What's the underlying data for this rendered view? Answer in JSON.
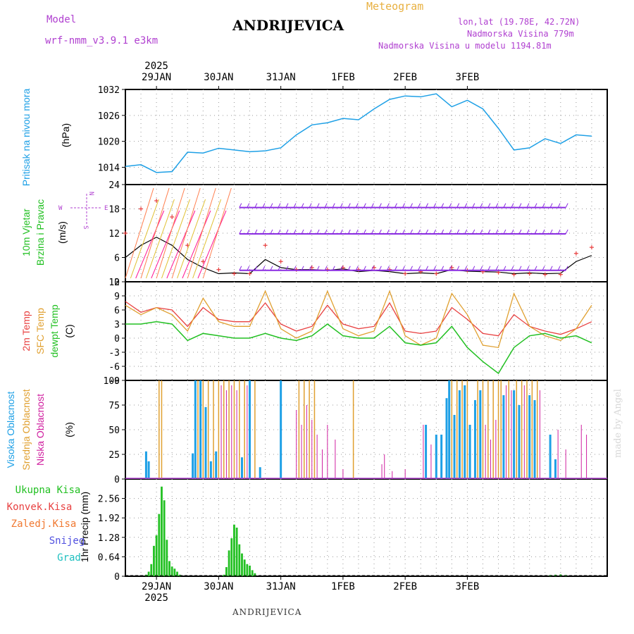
{
  "header": {
    "model_label": "Model",
    "model_name": "wrf-nmm_v3.9.1 e3km",
    "meteogram_label": "Meteogram",
    "station": "ANDRIJEVICA",
    "lonlat": "lon,lat (19.78E, 42.72N)",
    "altitude": "Nadmorska Visina 779m",
    "model_altitude": "Nadmorska Visina u modelu 1194.81m"
  },
  "footer": {
    "station": "ANDRIJEVICA",
    "credit": "made by Angel"
  },
  "dates": {
    "year": "2025",
    "labels": [
      "29JAN",
      "30JAN",
      "31JAN",
      "1FEB",
      "2FEB",
      "3FEB"
    ]
  },
  "colors": {
    "pressure": "#1ea0e6",
    "wind_label": "#22c022",
    "temp2m": "#e84040",
    "sfc": "#e0a030",
    "dewpt": "#22c022",
    "purple": "#b040d0",
    "high": "#1ea0e6",
    "mid": "#e0a030",
    "low": "#d020a0",
    "precip": "#22c022"
  },
  "panels": {
    "pressure": {
      "label": "Pritisak na nivou mora",
      "unit": "(hPa)"
    },
    "wind": {
      "label1": "10m Vjetar",
      "label2": "Brzina i Pravac",
      "unit": "(m/s)",
      "compass": {
        "n": "N",
        "w": "W",
        "e": "E",
        "s": "S"
      }
    },
    "temp": {
      "label1": "2m Temp",
      "label2": "SFC Temp",
      "label3": "dewpt Temp",
      "unit": "(C)"
    },
    "cloud": {
      "label1": "Visoka Oblacnost",
      "label2": "Srednja Oblacnost",
      "label3": "Niska Oblacnost",
      "unit": "(%)"
    },
    "precip": {
      "label": "1hr Precip (mm)",
      "legend": [
        "Ukupna Kisa",
        "Konvek.Kisa",
        "Zaledj.Kisa",
        "Snijeg",
        "Grad"
      ]
    }
  },
  "chart_data": [
    {
      "type": "line",
      "title": "Pritisak na nivou mora",
      "ylabel": "(hPa)",
      "ylim": [
        1010,
        1032
      ],
      "yticks": [
        "1032",
        "1026",
        "1020",
        "1014"
      ],
      "x_hours": [
        0,
        6,
        12,
        18,
        24,
        30,
        36,
        42,
        48,
        54,
        60,
        66,
        72,
        78,
        84,
        90,
        96,
        102,
        108,
        114,
        120,
        126,
        132,
        138,
        144,
        150,
        156,
        162,
        168,
        174,
        180
      ],
      "series": [
        {
          "name": "pressure",
          "values": [
            1014.2,
            1014.6,
            1012.8,
            1013.0,
            1017.5,
            1017.3,
            1018.4,
            1018.0,
            1017.6,
            1017.8,
            1018.5,
            1021.5,
            1023.8,
            1024.3,
            1025.3,
            1025.0,
            1027.5,
            1029.7,
            1030.5,
            1030.3,
            1031.0,
            1028.0,
            1029.5,
            1027.5,
            1023.0,
            1018.0,
            1018.5,
            1020.6,
            1019.5,
            1021.5,
            1021.2
          ]
        }
      ]
    },
    {
      "type": "line",
      "title": "10m Vjetar Brzina i Pravac",
      "ylabel": "(m/s)",
      "ylim": [
        0,
        24
      ],
      "yticks": [
        "24",
        "18",
        "12",
        "6",
        "0"
      ],
      "x_hours": [
        0,
        6,
        12,
        18,
        24,
        30,
        36,
        42,
        48,
        54,
        60,
        66,
        72,
        78,
        84,
        90,
        96,
        102,
        108,
        114,
        120,
        126,
        132,
        138,
        144,
        150,
        156,
        162,
        168,
        174,
        180
      ],
      "series": [
        {
          "name": "wind speed",
          "values": [
            6.0,
            9.0,
            11.0,
            9.0,
            5.5,
            3.5,
            2.0,
            2.2,
            2.0,
            5.5,
            3.5,
            3.0,
            3.0,
            2.8,
            3.2,
            2.5,
            2.8,
            2.5,
            2.0,
            2.2,
            2.0,
            3.0,
            2.6,
            2.5,
            2.4,
            2.0,
            2.2,
            2.0,
            2.1,
            5.0,
            6.5
          ]
        },
        {
          "name": "wind gust",
          "values": [
            12.0,
            18.0,
            20.0,
            16.0,
            9.0,
            5.0,
            3.0,
            2.0,
            2.0,
            9.0,
            5.0,
            3.0,
            3.5,
            3.0,
            3.5,
            3.0,
            3.5,
            3.0,
            2.0,
            2.5,
            2.0,
            3.5,
            2.8,
            2.5,
            2.3,
            1.8,
            2.0,
            1.8,
            1.8,
            7.0,
            8.5
          ]
        }
      ]
    },
    {
      "type": "line",
      "title": "2m Temp / SFC Temp / dewpt Temp",
      "ylabel": "(C)",
      "ylim": [
        -9,
        12
      ],
      "yticks": [
        "12",
        "9",
        "6",
        "3",
        "0",
        "-3",
        "-6",
        "-9"
      ],
      "x_hours": [
        0,
        6,
        12,
        18,
        24,
        30,
        36,
        42,
        48,
        54,
        60,
        66,
        72,
        78,
        84,
        90,
        96,
        102,
        108,
        114,
        120,
        126,
        132,
        138,
        144,
        150,
        156,
        162,
        168,
        174,
        180
      ],
      "series": [
        {
          "name": "2m Temp",
          "values": [
            7.8,
            5.5,
            6.5,
            6.0,
            2.5,
            6.5,
            4.0,
            3.5,
            3.5,
            7.5,
            3.0,
            1.5,
            2.5,
            7.0,
            3.0,
            2.0,
            2.5,
            7.5,
            1.5,
            1.0,
            1.5,
            6.5,
            4.0,
            1.0,
            0.5,
            5.0,
            2.5,
            1.5,
            0.8,
            2.0,
            3.5
          ]
        },
        {
          "name": "SFC Temp",
          "values": [
            7.0,
            5.0,
            6.5,
            5.0,
            1.5,
            8.5,
            3.5,
            2.5,
            2.5,
            10.0,
            2.0,
            0.0,
            1.5,
            10.0,
            2.0,
            0.5,
            1.5,
            10.0,
            0.5,
            -1.5,
            0.0,
            9.5,
            5.0,
            -1.5,
            -2.0,
            9.5,
            2.5,
            0.5,
            -0.5,
            2.0,
            7.0
          ]
        },
        {
          "name": "dewpt Temp",
          "values": [
            3.0,
            3.0,
            3.5,
            3.0,
            -0.5,
            1.0,
            0.5,
            0.0,
            0.0,
            1.0,
            0.0,
            -0.5,
            0.5,
            3.0,
            0.5,
            0.0,
            0.0,
            2.5,
            -1.0,
            -1.5,
            -1.0,
            2.5,
            -2.0,
            -5.0,
            -7.5,
            -2.0,
            0.5,
            1.0,
            0.0,
            0.5,
            -1.0
          ]
        }
      ]
    },
    {
      "type": "bar",
      "title": "Oblacnost",
      "ylabel": "(%)",
      "ylim": [
        0,
        100
      ],
      "yticks": [
        "100",
        "75",
        "50",
        "25",
        "0"
      ],
      "series": [
        {
          "name": "Visoka Oblacnost",
          "bars": [
            {
              "h": 8,
              "v": 28
            },
            {
              "h": 9,
              "v": 18
            },
            {
              "h": 26,
              "v": 26
            },
            {
              "h": 27,
              "v": 100
            },
            {
              "h": 29,
              "v": 100
            },
            {
              "h": 31,
              "v": 73
            },
            {
              "h": 33,
              "v": 18
            },
            {
              "h": 35,
              "v": 28
            },
            {
              "h": 45,
              "v": 22
            },
            {
              "h": 48,
              "v": 100
            },
            {
              "h": 52,
              "v": 12
            },
            {
              "h": 60,
              "v": 100
            },
            {
              "h": 116,
              "v": 55
            },
            {
              "h": 120,
              "v": 45
            },
            {
              "h": 122,
              "v": 45
            },
            {
              "h": 124,
              "v": 82
            },
            {
              "h": 125,
              "v": 100
            },
            {
              "h": 127,
              "v": 65
            },
            {
              "h": 129,
              "v": 90
            },
            {
              "h": 131,
              "v": 95
            },
            {
              "h": 133,
              "v": 55
            },
            {
              "h": 135,
              "v": 80
            },
            {
              "h": 137,
              "v": 90
            },
            {
              "h": 146,
              "v": 85
            },
            {
              "h": 150,
              "v": 90
            },
            {
              "h": 152,
              "v": 75
            },
            {
              "h": 156,
              "v": 85
            },
            {
              "h": 158,
              "v": 80
            },
            {
              "h": 164,
              "v": 45
            },
            {
              "h": 166,
              "v": 20
            }
          ]
        },
        {
          "name": "Srednja Oblacnost",
          "bars": [
            {
              "h": 13,
              "v": 100
            },
            {
              "h": 14,
              "v": 100
            },
            {
              "h": 28,
              "v": 100
            },
            {
              "h": 30,
              "v": 100
            },
            {
              "h": 32,
              "v": 100
            },
            {
              "h": 34,
              "v": 100
            },
            {
              "h": 36,
              "v": 100
            },
            {
              "h": 38,
              "v": 100
            },
            {
              "h": 40,
              "v": 100
            },
            {
              "h": 42,
              "v": 100
            },
            {
              "h": 44,
              "v": 100
            },
            {
              "h": 46,
              "v": 100
            },
            {
              "h": 50,
              "v": 100
            },
            {
              "h": 67,
              "v": 100
            },
            {
              "h": 69,
              "v": 100
            },
            {
              "h": 71,
              "v": 100
            },
            {
              "h": 73,
              "v": 100
            },
            {
              "h": 88,
              "v": 100
            },
            {
              "h": 126,
              "v": 100
            },
            {
              "h": 128,
              "v": 100
            },
            {
              "h": 130,
              "v": 100
            },
            {
              "h": 132,
              "v": 100
            },
            {
              "h": 136,
              "v": 100
            },
            {
              "h": 138,
              "v": 100
            },
            {
              "h": 140,
              "v": 100
            },
            {
              "h": 142,
              "v": 100
            },
            {
              "h": 144,
              "v": 100
            },
            {
              "h": 145,
              "v": 100
            },
            {
              "h": 148,
              "v": 100
            },
            {
              "h": 151,
              "v": 100
            },
            {
              "h": 153,
              "v": 100
            },
            {
              "h": 155,
              "v": 100
            },
            {
              "h": 157,
              "v": 100
            },
            {
              "h": 159,
              "v": 100
            }
          ]
        },
        {
          "name": "Niska Oblacnost",
          "bars": [
            {
              "h": 37,
              "v": 95
            },
            {
              "h": 39,
              "v": 90
            },
            {
              "h": 41,
              "v": 95
            },
            {
              "h": 43,
              "v": 90
            },
            {
              "h": 47,
              "v": 95
            },
            {
              "h": 66,
              "v": 70
            },
            {
              "h": 68,
              "v": 55
            },
            {
              "h": 70,
              "v": 75
            },
            {
              "h": 72,
              "v": 60
            },
            {
              "h": 74,
              "v": 45
            },
            {
              "h": 76,
              "v": 30
            },
            {
              "h": 78,
              "v": 55
            },
            {
              "h": 81,
              "v": 40
            },
            {
              "h": 84,
              "v": 10
            },
            {
              "h": 99,
              "v": 15
            },
            {
              "h": 100,
              "v": 25
            },
            {
              "h": 103,
              "v": 8
            },
            {
              "h": 108,
              "v": 10
            },
            {
              "h": 115,
              "v": 55
            },
            {
              "h": 118,
              "v": 35
            },
            {
              "h": 139,
              "v": 55
            },
            {
              "h": 141,
              "v": 40
            },
            {
              "h": 143,
              "v": 60
            },
            {
              "h": 147,
              "v": 95
            },
            {
              "h": 149,
              "v": 90
            },
            {
              "h": 154,
              "v": 95
            },
            {
              "h": 160,
              "v": 90
            },
            {
              "h": 167,
              "v": 50
            },
            {
              "h": 170,
              "v": 30
            },
            {
              "h": 176,
              "v": 55
            },
            {
              "h": 178,
              "v": 45
            }
          ]
        }
      ]
    },
    {
      "type": "bar",
      "title": "1hr Precip",
      "ylabel": "(mm)",
      "ylim": [
        0,
        3.2
      ],
      "yticks": [
        "2.56",
        "1.92",
        "1.28",
        "0.64",
        "0"
      ],
      "series": [
        {
          "name": "Ukupna Kisa",
          "bars": [
            {
              "h": 8,
              "v": 0.05
            },
            {
              "h": 9,
              "v": 0.15
            },
            {
              "h": 10,
              "v": 0.4
            },
            {
              "h": 11,
              "v": 1.0
            },
            {
              "h": 12,
              "v": 1.35
            },
            {
              "h": 13,
              "v": 2.05
            },
            {
              "h": 14,
              "v": 2.95
            },
            {
              "h": 15,
              "v": 2.5
            },
            {
              "h": 16,
              "v": 1.2
            },
            {
              "h": 17,
              "v": 0.5
            },
            {
              "h": 18,
              "v": 0.32
            },
            {
              "h": 19,
              "v": 0.25
            },
            {
              "h": 20,
              "v": 0.15
            },
            {
              "h": 21,
              "v": 0.05
            },
            {
              "h": 38,
              "v": 0.05
            },
            {
              "h": 39,
              "v": 0.3
            },
            {
              "h": 40,
              "v": 0.85
            },
            {
              "h": 41,
              "v": 1.25
            },
            {
              "h": 42,
              "v": 1.7
            },
            {
              "h": 43,
              "v": 1.6
            },
            {
              "h": 44,
              "v": 1.05
            },
            {
              "h": 45,
              "v": 0.75
            },
            {
              "h": 46,
              "v": 0.55
            },
            {
              "h": 47,
              "v": 0.4
            },
            {
              "h": 48,
              "v": 0.35
            },
            {
              "h": 49,
              "v": 0.2
            },
            {
              "h": 50,
              "v": 0.1
            },
            {
              "h": 164,
              "v": 0.04
            },
            {
              "h": 166,
              "v": 0.05
            },
            {
              "h": 168,
              "v": 0.06
            },
            {
              "h": 170,
              "v": 0.04
            }
          ]
        }
      ]
    }
  ]
}
